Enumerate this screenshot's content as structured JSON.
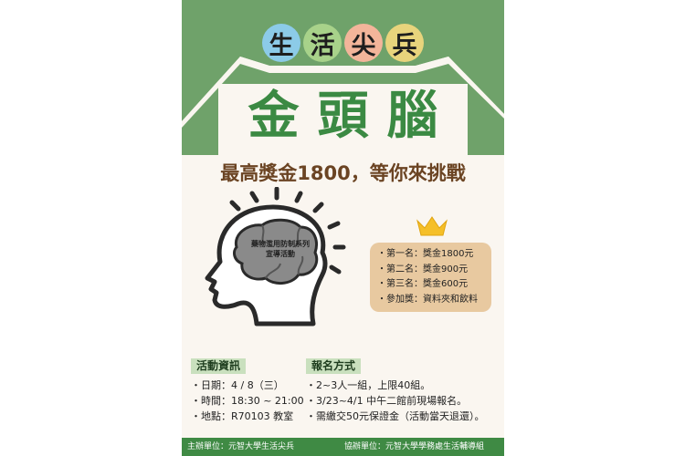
{
  "header": {
    "circle_chars": [
      "生",
      "活",
      "尖",
      "兵"
    ],
    "circle_colors": [
      "#8ccbe8",
      "#a8d28a",
      "#f3b59a",
      "#e8d47c"
    ]
  },
  "title": "金頭腦",
  "subtitle": "最高獎金1800，等你來挑戰",
  "brain_text": [
    "藥物濫用防制系列",
    "宣導活動"
  ],
  "prizes": [
    "・第一名：獎金1800元",
    "・第二名：獎金900元",
    "・第三名：獎金600元",
    "・參加獎：資料夾和飲料"
  ],
  "activity_info": {
    "label": "活動資訊",
    "lines": [
      "・日期：4 / 8（三）",
      "・時間：18:30 ~ 21:00",
      "・地點：R70103 教室"
    ]
  },
  "registration": {
    "label": "報名方式",
    "lines": [
      "・2~3人一組，上限40組。",
      "・3/23~4/1 中午二館前現場報名。",
      "・需繳交50元保證金（活動當天退還）。"
    ]
  },
  "footer": {
    "organizer": "主辦單位：元智大學生活尖兵",
    "co_organizer": "協辦單位：元智大學學務處生活輔導組"
  },
  "colors": {
    "green": "#6fa26a",
    "title_green": "#3b8a43",
    "brown": "#6b4423",
    "prize_bg": "#e8c9a0",
    "crown": "#f5bf28",
    "brain": "#8a8a8a"
  }
}
